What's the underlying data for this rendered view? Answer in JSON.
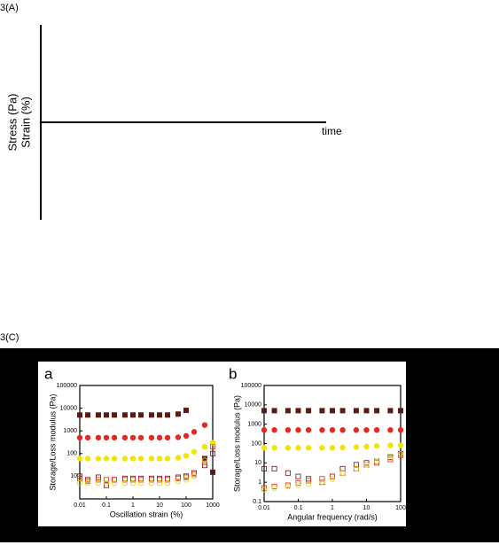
{
  "figure_a": {
    "label": "3(A)",
    "y_labels": [
      "Stress (Pa)",
      "Strain (%)"
    ],
    "x_label": "time"
  },
  "figure_c": {
    "label": "3(C)"
  },
  "chart_data": [
    {
      "type": "scatter",
      "panel": "a",
      "xlabel": "Oscillation strain (%)",
      "ylabel": "Storage/Loss modulus (Pa)",
      "log_x": true,
      "log_y": true,
      "xlim": [
        0.01,
        1000
      ],
      "ylim": [
        1,
        100000
      ],
      "xticks": [
        0.01,
        0.1,
        1,
        10,
        100,
        1000
      ],
      "yticks": [
        100000,
        10000,
        1000,
        100,
        10
      ],
      "x": [
        0.01,
        0.02,
        0.05,
        0.1,
        0.2,
        0.5,
        1,
        2,
        5,
        10,
        20,
        50,
        100,
        200,
        500,
        1000
      ],
      "series": [
        {
          "color": "#5c1a14",
          "marker": "square",
          "filled": true,
          "values": [
            5000,
            5000,
            5000,
            5000,
            5000,
            5000,
            5000,
            5000,
            5000,
            5000,
            5000,
            5500,
            8000,
            null,
            60,
            15
          ]
        },
        {
          "color": "#e8281e",
          "marker": "circle",
          "filled": true,
          "values": [
            500,
            500,
            500,
            500,
            500,
            500,
            500,
            500,
            500,
            500,
            500,
            520,
            600,
            900,
            1800,
            null
          ]
        },
        {
          "color": "#f2e600",
          "marker": "circle",
          "filled": true,
          "values": [
            60,
            60,
            60,
            60,
            60,
            60,
            60,
            60,
            60,
            60,
            60,
            65,
            80,
            120,
            200,
            300
          ]
        },
        {
          "color": "#5c1a14",
          "marker": "square",
          "filled": false,
          "values": [
            10,
            7,
            9,
            4,
            7,
            8,
            8,
            8,
            8,
            8,
            8,
            9,
            10,
            14,
            30,
            100
          ]
        },
        {
          "color": "#e8281e",
          "marker": "square",
          "filled": false,
          "values": [
            8,
            6,
            7,
            7,
            7,
            7,
            7,
            7,
            7,
            7,
            7,
            8,
            9,
            12,
            40,
            200
          ]
        },
        {
          "color": "#e8d800",
          "marker": "circle",
          "filled": false,
          "values": [
            5,
            5,
            5,
            5,
            5,
            5,
            5,
            5,
            5,
            5,
            5,
            6,
            7,
            10,
            50,
            300
          ]
        }
      ]
    },
    {
      "type": "scatter",
      "panel": "b",
      "xlabel": "Angular frequency (rad/s)",
      "ylabel": "Storage/Loss modulus (Pa)",
      "log_x": true,
      "log_y": true,
      "xlim": [
        0.01,
        100
      ],
      "ylim": [
        0.1,
        100000
      ],
      "xticks": [
        0.01,
        0.1,
        1,
        10,
        100
      ],
      "yticks": [
        100000,
        10000,
        1000,
        100,
        10,
        1,
        0.1
      ],
      "x": [
        0.01,
        0.02,
        0.05,
        0.1,
        0.2,
        0.5,
        1,
        2,
        5,
        10,
        20,
        50,
        100
      ],
      "series": [
        {
          "color": "#5c1a14",
          "marker": "square",
          "filled": true,
          "values": [
            5000,
            5000,
            5000,
            5000,
            5000,
            5000,
            5000,
            5000,
            5000,
            5000,
            5000,
            5000,
            5000
          ]
        },
        {
          "color": "#e8281e",
          "marker": "circle",
          "filled": true,
          "values": [
            500,
            500,
            500,
            500,
            500,
            500,
            500,
            500,
            500,
            500,
            500,
            500,
            500
          ]
        },
        {
          "color": "#f2e600",
          "marker": "circle",
          "filled": true,
          "values": [
            60,
            60,
            60,
            60,
            60,
            60,
            60,
            62,
            65,
            70,
            75,
            80,
            80
          ]
        },
        {
          "color": "#5c1a14",
          "marker": "square",
          "filled": false,
          "values": [
            5,
            5,
            3,
            2,
            1.5,
            1,
            2,
            5,
            8,
            10,
            12,
            20,
            30
          ]
        },
        {
          "color": "#e8281e",
          "marker": "square",
          "filled": false,
          "values": [
            0.5,
            0.6,
            0.7,
            0.9,
            1.2,
            1.5,
            2,
            3,
            5,
            8,
            10,
            15,
            25
          ]
        },
        {
          "color": "#e8d800",
          "marker": "circle",
          "filled": false,
          "values": [
            0.4,
            0.5,
            0.6,
            0.7,
            0.8,
            1,
            1.5,
            3,
            5,
            8,
            12,
            18,
            30
          ]
        }
      ]
    }
  ]
}
